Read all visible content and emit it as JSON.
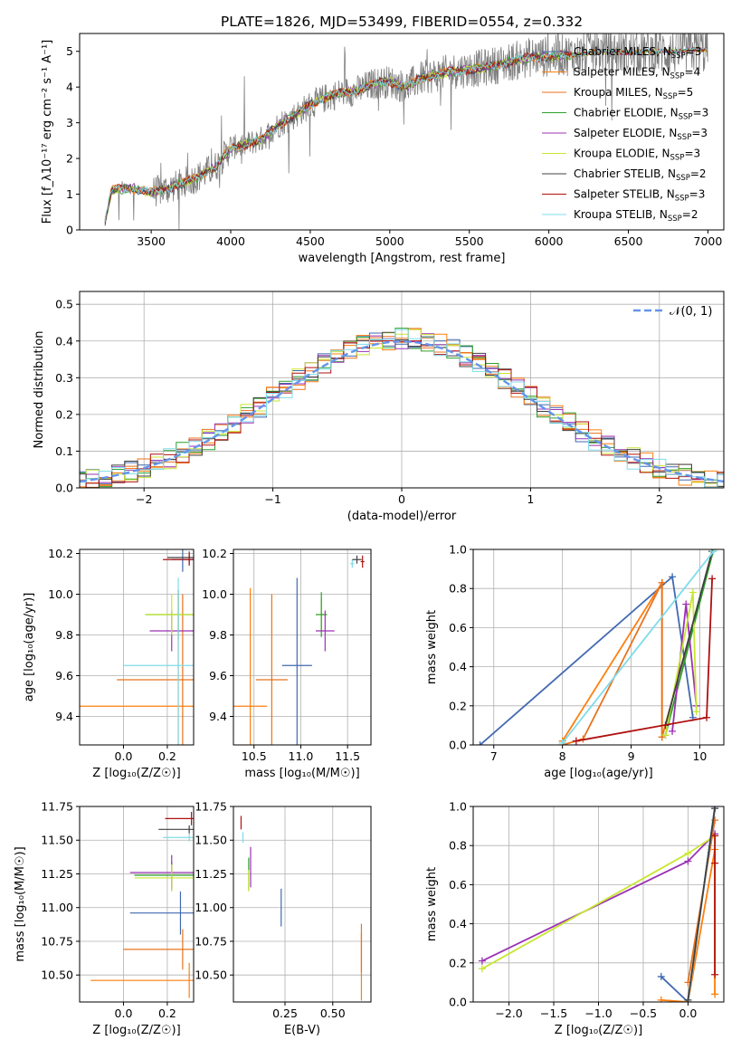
{
  "figure": {
    "title": "PLATE=1826, MJD=53499, FIBERID=0554, z=0.332"
  },
  "colors": {
    "Chabrier MILES": "#4169b0",
    "Salpeter MILES": "#ff7f0e",
    "Kroupa MILES": "#e8731f",
    "Chabrier ELODIE": "#2ca02c",
    "Salpeter ELODIE": "#9b32b4",
    "Kroupa ELODIE": "#c8e632",
    "Chabrier STELIB": "#404040",
    "Salpeter STELIB": "#b01010",
    "Kroupa STELIB": "#7fdcea",
    "normal": "#6495ed",
    "data": "#808080",
    "pink": "#e377c2",
    "blue": "#5b8fd8"
  },
  "chart_data": [
    {
      "type": "line",
      "xlabel": "wavelength [Angstrom, rest frame]",
      "ylabel": "Flux [f_λ10⁻¹⁷ erg cm⁻² s⁻¹ A⁻¹]",
      "xlim": [
        3050,
        7100
      ],
      "ylim": [
        0,
        5.5
      ],
      "xticks": [
        3500,
        4000,
        4500,
        5000,
        5500,
        6000,
        6500,
        7000
      ],
      "yticks": [
        0,
        1,
        2,
        3,
        4,
        5
      ],
      "grid": false,
      "legend_position": "top-right",
      "legend": [
        {
          "label": "Chabrier MILES, N",
          "sub": "SSP",
          "suffix": "=3"
        },
        {
          "label": "Salpeter MILES, N",
          "sub": "SSP",
          "suffix": "=4"
        },
        {
          "label": "Kroupa MILES, N",
          "sub": "SSP",
          "suffix": "=5"
        },
        {
          "label": "Chabrier ELODIE, N",
          "sub": "SSP",
          "suffix": "=3"
        },
        {
          "label": "Salpeter ELODIE, N",
          "sub": "SSP",
          "suffix": "=3"
        },
        {
          "label": "Kroupa ELODIE, N",
          "sub": "SSP",
          "suffix": "=3"
        },
        {
          "label": "Chabrier STELIB, N",
          "sub": "SSP",
          "suffix": "=2"
        },
        {
          "label": "Salpeter STELIB, N",
          "sub": "SSP",
          "suffix": "=3"
        },
        {
          "label": "Kroupa STELIB, N",
          "sub": "SSP",
          "suffix": "=2"
        }
      ],
      "model_anchor_x": [
        3200,
        3250,
        3300,
        3400,
        3500,
        3600,
        3700,
        3800,
        3900,
        4000,
        4100,
        4200,
        4300,
        4400,
        4500,
        4600,
        4700,
        4800,
        4900,
        5000,
        5100,
        5200,
        5300,
        5400,
        5500,
        5600,
        5700,
        5800,
        5900,
        6000,
        6100,
        6200,
        6300,
        6400,
        6500,
        6600,
        6700,
        6800,
        6900,
        7000
      ],
      "model_anchor_y": [
        0.0,
        1.1,
        1.15,
        1.15,
        1.05,
        1.15,
        1.3,
        1.5,
        1.75,
        2.3,
        2.4,
        2.55,
        2.95,
        3.2,
        3.5,
        3.7,
        3.85,
        3.9,
        4.1,
        4.15,
        4.0,
        4.25,
        4.35,
        4.45,
        4.5,
        4.55,
        4.65,
        4.75,
        4.85,
        4.85,
        4.9,
        4.9,
        5.0,
        5.0,
        4.95,
        5.0,
        5.0,
        5.0,
        5.05,
        5.05
      ]
    },
    {
      "type": "histogram",
      "xlabel": "(data-model)/error",
      "ylabel": "Normed distribution",
      "xlim": [
        -2.5,
        2.5
      ],
      "ylim": [
        0,
        0.535
      ],
      "xticks": [
        -2,
        -1,
        0,
        1,
        2
      ],
      "yticks": [
        0.0,
        0.1,
        0.2,
        0.3,
        0.4,
        0.5
      ],
      "grid": true,
      "legend_position": "top-right",
      "legend": [
        "𝒩(0, 1)"
      ],
      "bin_width": 0.1
    },
    {
      "type": "scatter",
      "xlabel": "Z [log₁₀(Z/Z☉)]",
      "ylabel": "age  [log₁₀(age/yr)]",
      "xlim": [
        -0.2,
        0.32
      ],
      "ylim": [
        9.26,
        10.22
      ],
      "xticks": [
        0.0,
        0.2
      ],
      "yticks": [
        9.4,
        9.6,
        9.8,
        10.0,
        10.2
      ],
      "grid": true,
      "points": [
        {
          "name": "Chabrier MILES",
          "x": 0.27,
          "y": 10.17,
          "xerr": 0.05,
          "yerr": 0.06
        },
        {
          "name": "Salpeter MILES",
          "x": 0.25,
          "y": 9.45,
          "xerr": 0.45,
          "yerr": 0.57
        },
        {
          "name": "Kroupa MILES",
          "x": 0.27,
          "y": 9.58,
          "xerr": 0.3,
          "yerr": 0.42
        },
        {
          "name": "Chabrier ELODIE",
          "x": 0.25,
          "y": 9.9,
          "xerr": 0.15,
          "yerr": 0.12
        },
        {
          "name": "Salpeter ELODIE",
          "x": 0.22,
          "y": 9.82,
          "xerr": 0.1,
          "yerr": 0.1
        },
        {
          "name": "Kroupa ELODIE",
          "x": 0.22,
          "y": 9.9,
          "xerr": 0.12,
          "yerr": 0.1
        },
        {
          "name": "Chabrier STELIB",
          "x": 0.3,
          "y": 10.18,
          "xerr": 0.1,
          "yerr": 0.03
        },
        {
          "name": "Salpeter STELIB",
          "x": 0.3,
          "y": 10.17,
          "xerr": 0.12,
          "yerr": 0.03
        },
        {
          "name": "Kroupa STELIB",
          "x": 0.25,
          "y": 9.65,
          "xerr": 0.25,
          "yerr": 0.43
        }
      ]
    },
    {
      "type": "scatter",
      "xlabel": "mass [log₁₀(M/M☉)]",
      "ylabel": "",
      "xlim": [
        10.28,
        11.75
      ],
      "ylim": [
        9.26,
        10.22
      ],
      "xticks": [
        10.5,
        11.0,
        11.5
      ],
      "yticks": [
        9.4,
        9.6,
        9.8,
        10.0,
        10.2
      ],
      "grid": true,
      "points": [
        {
          "name": "Salpeter MILES",
          "x": 10.46,
          "y": 9.45,
          "xerr": 0.18,
          "yerr": 0.58
        },
        {
          "name": "Kroupa MILES",
          "x": 10.69,
          "y": 9.58,
          "xerr": 0.17,
          "yerr": 0.42
        },
        {
          "name": "Chabrier MILES",
          "x": 10.96,
          "y": 9.65,
          "xerr": 0.16,
          "yerr": 0.43
        },
        {
          "name": "Kroupa ELODIE",
          "x": 11.22,
          "y": 9.9,
          "xerr": 0.06,
          "yerr": 0.08
        },
        {
          "name": "Chabrier ELODIE",
          "x": 11.22,
          "y": 9.9,
          "xerr": 0.06,
          "yerr": 0.11
        },
        {
          "name": "Salpeter ELODIE",
          "x": 11.26,
          "y": 9.82,
          "xerr": 0.1,
          "yerr": 0.1
        },
        {
          "name": "Kroupa STELIB",
          "x": 11.55,
          "y": 10.15,
          "xerr": 0.02,
          "yerr": 0.02
        },
        {
          "name": "Chabrier STELIB",
          "x": 11.6,
          "y": 10.17,
          "xerr": 0.05,
          "yerr": 0.02
        },
        {
          "name": "Salpeter STELIB",
          "x": 11.66,
          "y": 10.16,
          "xerr": 0.02,
          "yerr": 0.03
        }
      ]
    },
    {
      "type": "line",
      "xlabel": "age  [log₁₀(age/yr)]",
      "ylabel": "mass weight",
      "xlim": [
        6.7,
        10.35
      ],
      "ylim": [
        0,
        1.0
      ],
      "xticks": [
        7,
        8,
        9,
        10
      ],
      "yticks": [
        0.0,
        0.2,
        0.4,
        0.6,
        0.8,
        1.0
      ],
      "grid": true,
      "series": [
        {
          "name": "Chabrier MILES",
          "x": [
            6.8,
            9.6,
            9.9
          ],
          "y": [
            0.0,
            0.86,
            0.14
          ]
        },
        {
          "name": "Salpeter MILES",
          "x": [
            8.0,
            9.45,
            9.45
          ],
          "y": [
            0.02,
            0.83,
            0.04
          ]
        },
        {
          "name": "Kroupa MILES",
          "x": [
            8.0,
            8.3,
            9.45,
            9.45,
            10.2
          ],
          "y": [
            0.0,
            0.03,
            0.83,
            0.04,
            1.0
          ]
        },
        {
          "name": "Chabrier ELODIE",
          "x": [
            9.5,
            10.2
          ],
          "y": [
            0.05,
            1.0
          ]
        },
        {
          "name": "Salpeter ELODIE",
          "x": [
            9.6,
            9.8,
            9.95
          ],
          "y": [
            0.07,
            0.72,
            0.2
          ]
        },
        {
          "name": "Kroupa ELODIE",
          "x": [
            9.5,
            9.9,
            9.95
          ],
          "y": [
            0.05,
            0.78,
            0.17
          ]
        },
        {
          "name": "Chabrier STELIB",
          "x": [
            9.5,
            10.18
          ],
          "y": [
            0.1,
            0.99
          ]
        },
        {
          "name": "Salpeter STELIB",
          "x": [
            8.2,
            10.1,
            10.18
          ],
          "y": [
            0.02,
            0.14,
            0.85
          ]
        },
        {
          "name": "Kroupa STELIB",
          "x": [
            8.0,
            10.2
          ],
          "y": [
            0.01,
            0.99
          ]
        }
      ]
    },
    {
      "type": "scatter",
      "xlabel": "Z [log₁₀(Z/Z☉)]",
      "ylabel": "mass [log₁₀(M/M☉)]",
      "xlim": [
        -0.2,
        0.32
      ],
      "ylim": [
        10.3,
        11.75
      ],
      "xticks": [
        0.0,
        0.2
      ],
      "yticks": [
        10.5,
        10.75,
        11.0,
        11.25,
        11.5,
        11.75
      ],
      "grid": true,
      "points": [
        {
          "name": "Salpeter MILES",
          "x": 0.3,
          "y": 10.46,
          "xerr": 0.45,
          "yerr": 0.13
        },
        {
          "name": "Kroupa MILES",
          "x": 0.27,
          "y": 10.69,
          "xerr": 0.27,
          "yerr": 0.15
        },
        {
          "name": "Chabrier MILES",
          "x": 0.26,
          "y": 10.96,
          "xerr": 0.23,
          "yerr": 0.16
        },
        {
          "name": "Chabrier ELODIE",
          "x": 0.22,
          "y": 11.24,
          "xerr": 0.17,
          "yerr": 0.1
        },
        {
          "name": "Salpeter ELODIE",
          "x": 0.22,
          "y": 11.26,
          "xerr": 0.19,
          "yerr": 0.13
        },
        {
          "name": "Kroupa ELODIE",
          "x": 0.22,
          "y": 11.22,
          "xerr": 0.17,
          "yerr": 0.1
        },
        {
          "name": "Chabrier STELIB",
          "x": 0.3,
          "y": 11.58,
          "xerr": 0.14,
          "yerr": 0.03
        },
        {
          "name": "Salpeter STELIB",
          "x": 0.31,
          "y": 11.66,
          "xerr": 0.12,
          "yerr": 0.05
        },
        {
          "name": "Kroupa STELIB",
          "x": 0.3,
          "y": 11.52,
          "xerr": 0.12,
          "yerr": 0.03
        }
      ]
    },
    {
      "type": "scatter",
      "xlabel": "E(B-V)",
      "ylabel": "",
      "xlim": [
        -0.02,
        0.7
      ],
      "ylim": [
        10.3,
        11.75
      ],
      "xticks": [
        0.25,
        0.5
      ],
      "yticks": [
        10.5,
        10.75,
        11.0,
        11.25,
        11.5,
        11.75
      ],
      "grid": true,
      "points": [
        {
          "name": "Salpeter MILES",
          "x": 0.65,
          "y": 10.56,
          "xerr": 0.0,
          "yerr": 0.25
        },
        {
          "name": "Kroupa MILES",
          "x": 0.65,
          "y": 10.7,
          "xerr": 0.0,
          "yerr": 0.18
        },
        {
          "name": "Chabrier MILES",
          "x": 0.23,
          "y": 11.0,
          "xerr": 0.0,
          "yerr": 0.14
        },
        {
          "name": "Salpeter ELODIE",
          "x": 0.07,
          "y": 11.3,
          "xerr": 0.0,
          "yerr": 0.15
        },
        {
          "name": "Chabrier ELODIE",
          "x": 0.06,
          "y": 11.25,
          "xerr": 0.0,
          "yerr": 0.12
        },
        {
          "name": "Kroupa ELODIE",
          "x": 0.06,
          "y": 11.2,
          "xerr": 0.0,
          "yerr": 0.08
        },
        {
          "name": "Kroupa STELIB",
          "x": 0.03,
          "y": 11.52,
          "xerr": 0.0,
          "yerr": 0.04
        },
        {
          "name": "Salpeter STELIB",
          "x": 0.02,
          "y": 11.63,
          "xerr": 0.0,
          "yerr": 0.05
        }
      ]
    },
    {
      "type": "line",
      "xlabel": "Z [log₁₀(Z/Z☉)]",
      "ylabel": "mass weight",
      "xlim": [
        -2.4,
        0.4
      ],
      "ylim": [
        0,
        1.0
      ],
      "xticks": [
        -2.0,
        -1.5,
        -1.0,
        -0.5,
        0.0
      ],
      "yticks": [
        0.0,
        0.2,
        0.4,
        0.6,
        0.8,
        1.0
      ],
      "grid": true,
      "series": [
        {
          "name": "Salpeter ELODIE",
          "x": [
            -2.3,
            0.0,
            0.3
          ],
          "y": [
            0.21,
            0.72,
            0.86
          ]
        },
        {
          "name": "Kroupa ELODIE",
          "x": [
            -2.3,
            0.0,
            0.3,
            0.3
          ],
          "y": [
            0.17,
            0.76,
            0.85,
            0.04
          ]
        },
        {
          "name": "Chabrier MILES",
          "x": [
            -0.3,
            0.0,
            0.3
          ],
          "y": [
            0.13,
            0.0,
            1.0
          ]
        },
        {
          "name": "Salpeter MILES",
          "x": [
            -0.3,
            0.0,
            0.3,
            0.3
          ],
          "y": [
            0.01,
            0.0,
            0.78,
            0.04
          ]
        },
        {
          "name": "Kroupa MILES",
          "x": [
            0.0,
            0.3
          ],
          "y": [
            0.1,
            0.93
          ]
        },
        {
          "name": "Salpeter STELIB",
          "x": [
            0.3,
            0.3,
            0.3
          ],
          "y": [
            0.14,
            0.85,
            0.71
          ]
        },
        {
          "name": "Kroupa STELIB",
          "x": [
            0.0,
            0.3
          ],
          "y": [
            0.0,
            0.99
          ]
        },
        {
          "name": "Chabrier STELIB",
          "x": [
            0.0,
            0.3
          ],
          "y": [
            0.01,
            0.99
          ]
        }
      ]
    }
  ]
}
